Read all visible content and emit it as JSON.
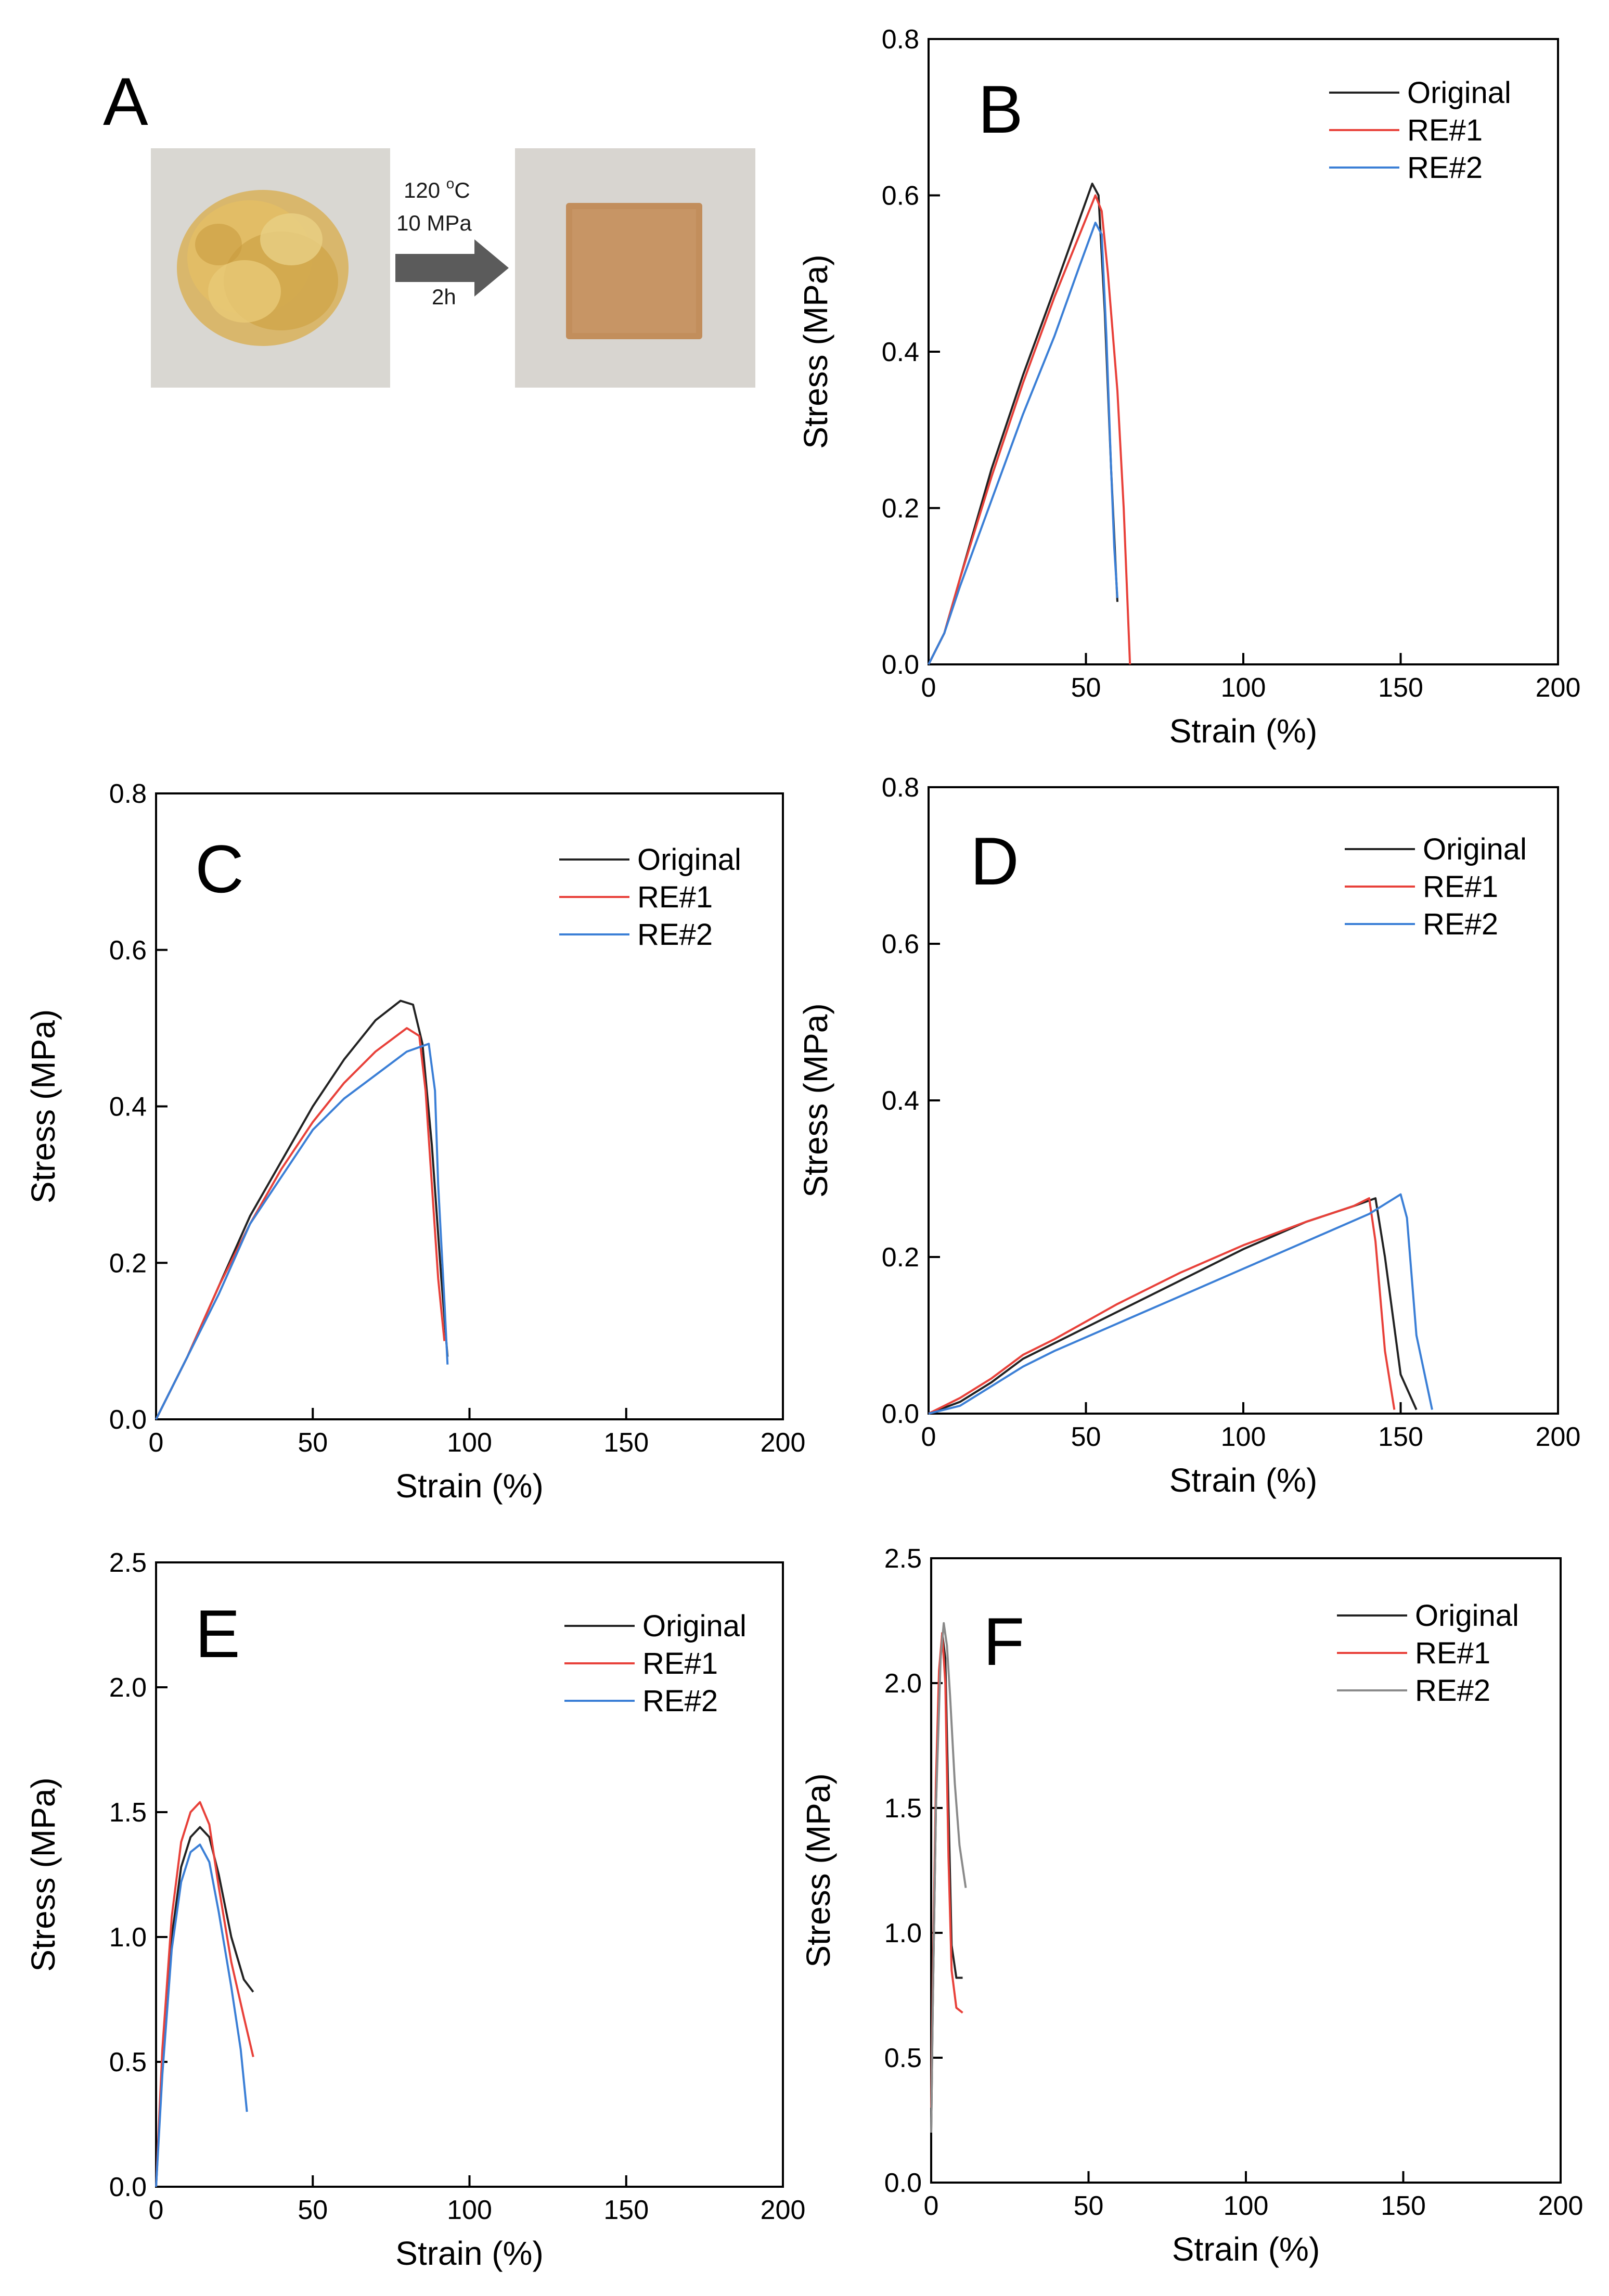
{
  "panel_a": {
    "letter": "A",
    "process": {
      "temperature": "120",
      "temperature_sup": "o",
      "temperature_unit": "C",
      "pressure": "10 MPa",
      "time": "2h"
    }
  },
  "colors": {
    "original": "#222222",
    "re1": "#e8413a",
    "re2": "#3b7fd6",
    "f_re2": "#8a8a8a"
  },
  "chart_data": [
    {
      "panel": "B",
      "type": "line",
      "xlabel": "Strain (%)",
      "ylabel": "Stress (MPa)",
      "xlim": [
        0,
        200
      ],
      "ylim": [
        0,
        0.8
      ],
      "xticks": [
        "0",
        "50",
        "100",
        "150",
        "200"
      ],
      "yticks": [
        "0.0",
        "0.2",
        "0.4",
        "0.6",
        "0.8"
      ],
      "legend_position": "top-right",
      "series": [
        {
          "name": "Original",
          "color": "#222222",
          "x": [
            0,
            5,
            10,
            20,
            30,
            40,
            48,
            52,
            54,
            56,
            58,
            59.5,
            60
          ],
          "y": [
            0,
            0.04,
            0.11,
            0.25,
            0.37,
            0.48,
            0.57,
            0.615,
            0.6,
            0.45,
            0.25,
            0.12,
            0.08
          ]
        },
        {
          "name": "RE#1",
          "color": "#e8413a",
          "x": [
            0,
            5,
            10,
            20,
            30,
            40,
            48,
            53,
            55,
            57,
            60,
            62,
            64
          ],
          "y": [
            0,
            0.04,
            0.11,
            0.24,
            0.36,
            0.47,
            0.55,
            0.6,
            0.58,
            0.5,
            0.35,
            0.2,
            0.0
          ]
        },
        {
          "name": "RE#2",
          "color": "#3b7fd6",
          "x": [
            0,
            5,
            10,
            20,
            30,
            40,
            48,
            53,
            55,
            56.5,
            58,
            59,
            60
          ],
          "y": [
            0,
            0.04,
            0.1,
            0.21,
            0.32,
            0.42,
            0.51,
            0.565,
            0.55,
            0.42,
            0.25,
            0.15,
            0.085
          ]
        }
      ]
    },
    {
      "panel": "C",
      "type": "line",
      "xlabel": "Strain (%)",
      "ylabel": "Stress (MPa)",
      "xlim": [
        0,
        200
      ],
      "ylim": [
        0,
        0.8
      ],
      "xticks": [
        "0",
        "50",
        "100",
        "150",
        "200"
      ],
      "yticks": [
        "0.0",
        "0.2",
        "0.4",
        "0.6",
        "0.8"
      ],
      "legend_position": "top-right",
      "series": [
        {
          "name": "Original",
          "color": "#222222",
          "x": [
            0,
            10,
            20,
            30,
            40,
            50,
            60,
            70,
            78,
            82,
            85,
            88,
            91,
            93
          ],
          "y": [
            0,
            0.08,
            0.17,
            0.26,
            0.33,
            0.4,
            0.46,
            0.51,
            0.535,
            0.53,
            0.48,
            0.35,
            0.18,
            0.08
          ]
        },
        {
          "name": "RE#1",
          "color": "#e8413a",
          "x": [
            0,
            10,
            20,
            30,
            40,
            50,
            60,
            70,
            80,
            84,
            86,
            88,
            90,
            92
          ],
          "y": [
            0,
            0.08,
            0.17,
            0.25,
            0.32,
            0.38,
            0.43,
            0.47,
            0.5,
            0.49,
            0.42,
            0.3,
            0.18,
            0.1
          ]
        },
        {
          "name": "RE#2",
          "color": "#3b7fd6",
          "x": [
            0,
            10,
            20,
            30,
            40,
            50,
            60,
            70,
            80,
            87,
            89,
            90,
            92,
            93
          ],
          "y": [
            0,
            0.08,
            0.16,
            0.25,
            0.31,
            0.37,
            0.41,
            0.44,
            0.47,
            0.48,
            0.42,
            0.3,
            0.15,
            0.07
          ]
        }
      ]
    },
    {
      "panel": "D",
      "type": "line",
      "xlabel": "Strain (%)",
      "ylabel": "Stress (MPa)",
      "xlim": [
        0,
        200
      ],
      "ylim": [
        0,
        0.8
      ],
      "xticks": [
        "0",
        "50",
        "100",
        "150",
        "200"
      ],
      "yticks": [
        "0.0",
        "0.2",
        "0.4",
        "0.6",
        "0.8"
      ],
      "legend_position": "top-right",
      "series": [
        {
          "name": "Original",
          "color": "#222222",
          "x": [
            0,
            10,
            20,
            30,
            40,
            60,
            80,
            100,
            120,
            135,
            142,
            145,
            150,
            155
          ],
          "y": [
            0,
            0.015,
            0.04,
            0.07,
            0.09,
            0.13,
            0.17,
            0.21,
            0.245,
            0.265,
            0.275,
            0.2,
            0.05,
            0.005
          ]
        },
        {
          "name": "RE#1",
          "color": "#e8413a",
          "x": [
            0,
            10,
            20,
            30,
            40,
            60,
            80,
            100,
            120,
            135,
            140,
            142,
            145,
            148
          ],
          "y": [
            0,
            0.02,
            0.045,
            0.075,
            0.095,
            0.14,
            0.18,
            0.215,
            0.245,
            0.265,
            0.275,
            0.22,
            0.08,
            0.005
          ]
        },
        {
          "name": "RE#2",
          "color": "#3b7fd6",
          "x": [
            0,
            10,
            20,
            30,
            40,
            60,
            80,
            100,
            120,
            140,
            150,
            152,
            155,
            160
          ],
          "y": [
            0,
            0.01,
            0.035,
            0.06,
            0.08,
            0.115,
            0.15,
            0.185,
            0.22,
            0.255,
            0.28,
            0.25,
            0.1,
            0.005
          ]
        }
      ]
    },
    {
      "panel": "E",
      "type": "line",
      "xlabel": "Strain (%)",
      "ylabel": "Stress (MPa)",
      "xlim": [
        0,
        200
      ],
      "ylim": [
        0,
        2.5
      ],
      "xticks": [
        "0",
        "50",
        "100",
        "150",
        "200"
      ],
      "yticks": [
        "0.0",
        "0.5",
        "1.0",
        "1.5",
        "2.0",
        "2.5"
      ],
      "legend_position": "top-right",
      "series": [
        {
          "name": "Original",
          "color": "#222222",
          "x": [
            0,
            2,
            5,
            8,
            11,
            14,
            17,
            20,
            24,
            28,
            31
          ],
          "y": [
            0,
            0.5,
            1.0,
            1.28,
            1.4,
            1.44,
            1.4,
            1.25,
            1.0,
            0.83,
            0.78
          ]
        },
        {
          "name": "RE#1",
          "color": "#e8413a",
          "x": [
            0,
            2,
            5,
            8,
            11,
            14,
            17,
            20,
            24,
            28,
            31
          ],
          "y": [
            0,
            0.55,
            1.08,
            1.38,
            1.5,
            1.54,
            1.45,
            1.2,
            0.9,
            0.68,
            0.52
          ]
        },
        {
          "name": "RE#2",
          "color": "#3b7fd6",
          "x": [
            0,
            2,
            5,
            8,
            11,
            14,
            17,
            20,
            24,
            27,
            29
          ],
          "y": [
            0,
            0.45,
            0.95,
            1.22,
            1.34,
            1.37,
            1.3,
            1.1,
            0.8,
            0.55,
            0.3
          ]
        }
      ]
    },
    {
      "panel": "F",
      "type": "line",
      "xlabel": "Strain (%)",
      "ylabel": "Stress (MPa)",
      "xlim": [
        0,
        200
      ],
      "ylim": [
        0,
        2.5
      ],
      "xticks": [
        "0",
        "50",
        "100",
        "150",
        "200"
      ],
      "yticks": [
        "0.0",
        "0.5",
        "1.0",
        "1.5",
        "2.0",
        "2.5"
      ],
      "legend_position": "top-right",
      "series": [
        {
          "name": "Original",
          "color": "#222222",
          "x": [
            0,
            0.5,
            1.5,
            2.5,
            3.5,
            4.5,
            5.5,
            6.5,
            8,
            10
          ],
          "y": [
            0.2,
            0.7,
            1.5,
            2.0,
            2.2,
            2.1,
            1.5,
            0.95,
            0.82,
            0.82
          ]
        },
        {
          "name": "RE#1",
          "color": "#e8413a",
          "x": [
            0,
            0.5,
            1.5,
            2.5,
            3.5,
            4.5,
            5.5,
            6.5,
            8,
            10
          ],
          "y": [
            0.3,
            0.8,
            1.6,
            2.05,
            2.2,
            2.0,
            1.3,
            0.85,
            0.7,
            0.68
          ]
        },
        {
          "name": "RE#2",
          "color": "#8a8a8a",
          "x": [
            0,
            0.5,
            1.5,
            3,
            4,
            5,
            6,
            7.5,
            9,
            11
          ],
          "y": [
            0.2,
            0.7,
            1.5,
            2.1,
            2.24,
            2.15,
            1.95,
            1.6,
            1.35,
            1.18
          ]
        }
      ]
    }
  ]
}
